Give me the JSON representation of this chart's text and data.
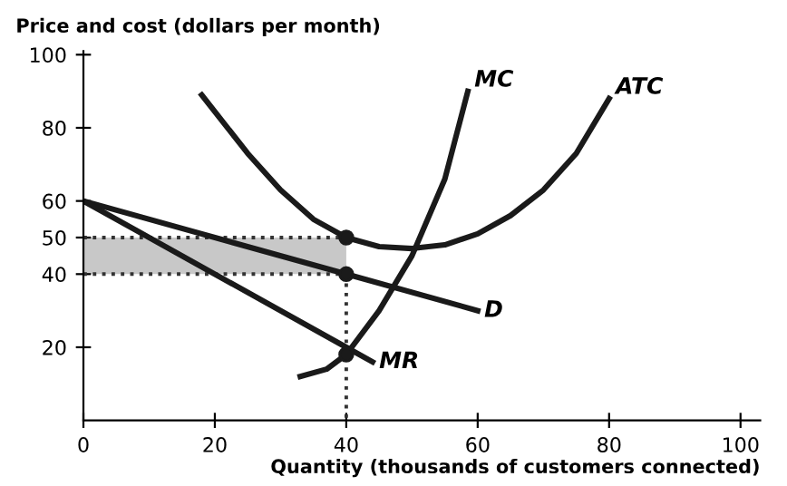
{
  "chart_data": {
    "type": "line",
    "ylabel": "Price and cost (dollars per month)",
    "xlabel": "Quantity (thousands of customers connected)",
    "xlim": [
      0,
      103
    ],
    "ylim": [
      0,
      101
    ],
    "xticks": [
      0,
      20,
      40,
      60,
      80,
      100
    ],
    "yticks": [
      20,
      40,
      50,
      60,
      80,
      100
    ],
    "grid": false,
    "legend": false,
    "series": [
      {
        "type": "line",
        "color": "#333333",
        "line_style": "dotted",
        "x": [
          0,
          40
        ],
        "values": [
          50,
          50
        ],
        "lower": [
          40,
          40
        ],
        "upper": [
          50,
          50
        ]
      },
      {
        "type": "line",
        "line_style": "dotted",
        "color": "#333333",
        "x": [
          40,
          40
        ],
        "values": [
          40,
          0
        ]
      },
      {
        "type": "line",
        "line_style": "dotted",
        "color": "#333333",
        "x": [
          0,
          40
        ],
        "values": [
          40,
          40
        ]
      },
      {
        "name": "D",
        "color": "#1a1a1a",
        "x": [
          0,
          40,
          60
        ],
        "values": [
          60,
          40,
          30
        ]
      },
      {
        "name": "MR",
        "color": "#1a1a1a",
        "x": [
          0,
          40,
          44
        ],
        "values": [
          60,
          20,
          16
        ]
      },
      {
        "name": "MC",
        "color": "#1a1a1a",
        "x": [
          33,
          37,
          40,
          45,
          50,
          55,
          58.5
        ],
        "values": [
          12,
          14,
          18,
          30,
          45,
          66,
          90
        ]
      },
      {
        "name": "ATC",
        "color": "#1a1a1a",
        "x": [
          18,
          25,
          30,
          35,
          40,
          45,
          50,
          55,
          60,
          65,
          70,
          75,
          80
        ],
        "values": [
          89,
          73,
          63,
          55,
          50,
          47.5,
          47,
          48,
          51,
          56,
          63,
          73,
          88
        ]
      },
      {
        "type": "scatter",
        "marker": "circle",
        "color": "#1a1a1a",
        "x": [
          40,
          40,
          40
        ],
        "values": [
          50,
          40,
          18
        ]
      }
    ]
  }
}
